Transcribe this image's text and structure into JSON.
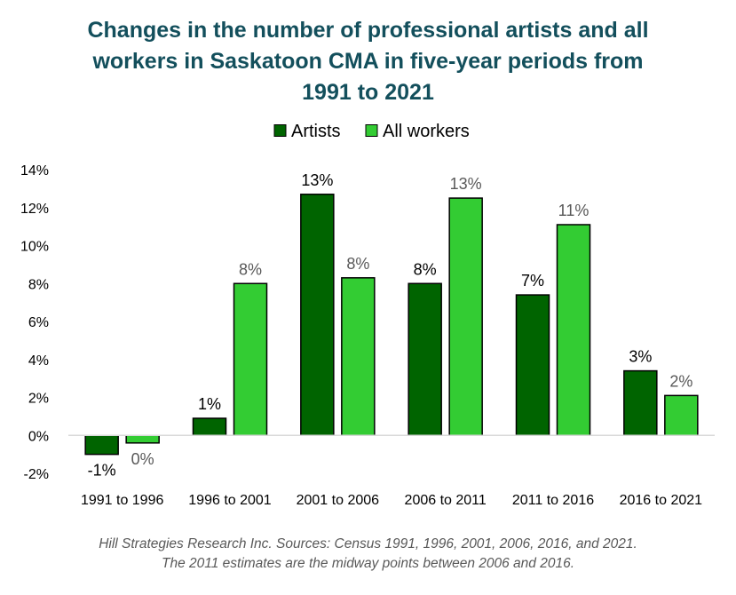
{
  "title_lines": [
    "Changes in the number of professional artists and all",
    "workers in Saskatoon CMA in five-year periods from",
    "1991 to 2021"
  ],
  "source_lines": [
    "Hill Strategies Research Inc. Sources: Census 1991, 1996, 2001, 2006, 2016, and 2021.",
    "The 2011 estimates are the midway points between 2006 and 2016."
  ],
  "colors": {
    "title": "#134f5c",
    "artists": "#006400",
    "all_workers": "#33cc33",
    "artists_label": "#000000",
    "all_workers_label": "#595959",
    "axis": "#d9d9d9",
    "text": "#000000",
    "source": "#595959"
  },
  "chart_data": {
    "type": "bar",
    "categories": [
      "1991 to 1996",
      "1996 to 2001",
      "2001 to 2006",
      "2006 to 2011",
      "2011 to 2016",
      "2016 to 2021"
    ],
    "series": [
      {
        "name": "Artists",
        "values": [
          -1.0,
          0.9,
          12.7,
          8.0,
          7.4,
          3.4
        ],
        "labels": [
          "-1%",
          "1%",
          "13%",
          "8%",
          "7%",
          "3%"
        ]
      },
      {
        "name": "All workers",
        "values": [
          -0.4,
          8.0,
          8.3,
          12.5,
          11.1,
          2.1
        ],
        "labels": [
          "0%",
          "8%",
          "8%",
          "13%",
          "11%",
          "2%"
        ]
      }
    ],
    "ylim": [
      -2,
      14
    ],
    "yticks": [
      {
        "value": 14,
        "label": "14%"
      },
      {
        "value": 12,
        "label": "12%"
      },
      {
        "value": 10,
        "label": "10%"
      },
      {
        "value": 8,
        "label": "8%"
      },
      {
        "value": 6,
        "label": "6%"
      },
      {
        "value": 4,
        "label": "4%"
      },
      {
        "value": 2,
        "label": "2%"
      },
      {
        "value": 0,
        "label": "0%"
      },
      {
        "value": -2,
        "label": "-2%"
      }
    ],
    "grid": false,
    "legend": "top-center"
  }
}
